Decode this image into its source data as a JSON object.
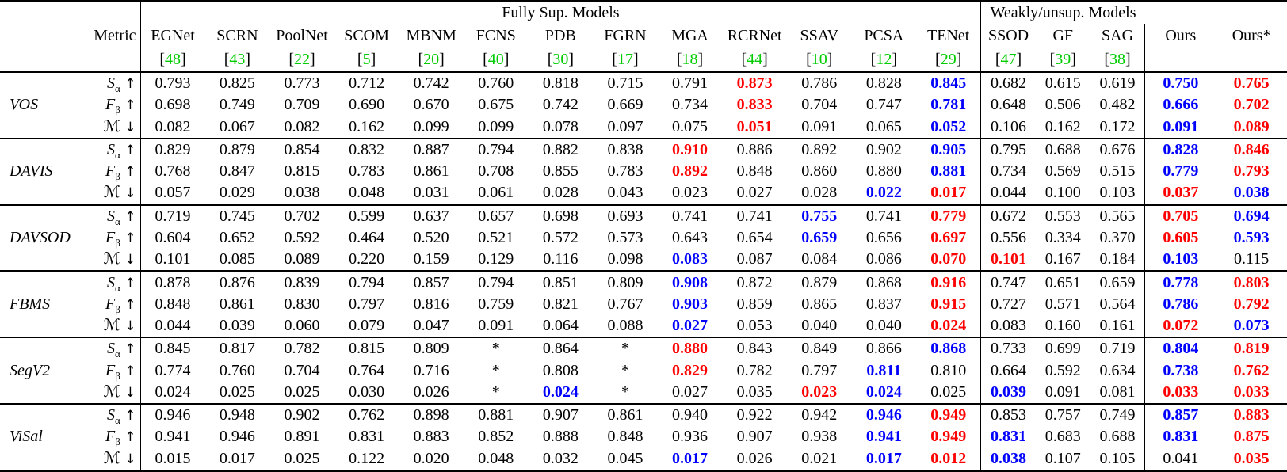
{
  "table": {
    "group_headers": [
      {
        "label": "Fully Sup. Models",
        "span": 13
      },
      {
        "label": "Weakly/unsup. Models",
        "span": 3
      }
    ],
    "metric_header": "Metric",
    "brackets": [
      "[",
      "]"
    ],
    "colors": {
      "best": "#ff0000",
      "second": "#0000ff",
      "cite": "#00cc00"
    },
    "legend": {
      "k": "black",
      "r": "best-red-bold",
      "b": "second-blue-bold"
    },
    "models": [
      {
        "name": "EGNet",
        "cite": "48"
      },
      {
        "name": "SCRN",
        "cite": "43"
      },
      {
        "name": "PoolNet",
        "cite": "22"
      },
      {
        "name": "SCOM",
        "cite": "5"
      },
      {
        "name": "MBNM",
        "cite": "20"
      },
      {
        "name": "FCNS",
        "cite": "40"
      },
      {
        "name": "PDB",
        "cite": "30"
      },
      {
        "name": "FGRN",
        "cite": "17"
      },
      {
        "name": "MGA",
        "cite": "18"
      },
      {
        "name": "RCRNet",
        "cite": "44"
      },
      {
        "name": "SSAV",
        "cite": "10"
      },
      {
        "name": "PCSA",
        "cite": "12"
      },
      {
        "name": "TENet",
        "cite": "29"
      },
      {
        "name": "SSOD",
        "cite": "47"
      },
      {
        "name": "GF",
        "cite": "39"
      },
      {
        "name": "SAG",
        "cite": "38"
      },
      {
        "name": "Ours",
        "cite": ""
      },
      {
        "name": "Ours*",
        "cite": ""
      }
    ],
    "metrics": [
      {
        "sym": "S",
        "sub": "α",
        "dir": "↑",
        "key": "s-alpha"
      },
      {
        "sym": "F",
        "sub": "β",
        "dir": "↑",
        "key": "f-beta"
      },
      {
        "sym": "ℳ",
        "sub": "",
        "dir": "↓",
        "key": "mae"
      }
    ],
    "datasets": [
      {
        "name": "VOS",
        "rows": [
          [
            "0.793:k",
            "0.825:k",
            "0.773:k",
            "0.712:k",
            "0.742:k",
            "0.760:k",
            "0.818:k",
            "0.715:k",
            "0.791:k",
            "0.873:r",
            "0.786:k",
            "0.828:k",
            "0.845:b",
            "0.682:k",
            "0.615:k",
            "0.619:k",
            "0.750:b",
            "0.765:r"
          ],
          [
            "0.698:k",
            "0.749:k",
            "0.709:k",
            "0.690:k",
            "0.670:k",
            "0.675:k",
            "0.742:k",
            "0.669:k",
            "0.734:k",
            "0.833:r",
            "0.704:k",
            "0.747:k",
            "0.781:b",
            "0.648:k",
            "0.506:k",
            "0.482:k",
            "0.666:b",
            "0.702:r"
          ],
          [
            "0.082:k",
            "0.067:k",
            "0.082:k",
            "0.162:k",
            "0.099:k",
            "0.099:k",
            "0.078:k",
            "0.097:k",
            "0.075:k",
            "0.051:r",
            "0.091:k",
            "0.065:k",
            "0.052:b",
            "0.106:k",
            "0.162:k",
            "0.172:k",
            "0.091:b",
            "0.089:r"
          ]
        ]
      },
      {
        "name": "DAVIS",
        "rows": [
          [
            "0.829:k",
            "0.879:k",
            "0.854:k",
            "0.832:k",
            "0.887:k",
            "0.794:k",
            "0.882:k",
            "0.838:k",
            "0.910:r",
            "0.886:k",
            "0.892:k",
            "0.902:k",
            "0.905:b",
            "0.795:k",
            "0.688:k",
            "0.676:k",
            "0.828:b",
            "0.846:r"
          ],
          [
            "0.768:k",
            "0.847:k",
            "0.815:k",
            "0.783:k",
            "0.861:k",
            "0.708:k",
            "0.855:k",
            "0.783:k",
            "0.892:r",
            "0.848:k",
            "0.860:k",
            "0.880:k",
            "0.881:b",
            "0.734:k",
            "0.569:k",
            "0.515:k",
            "0.779:b",
            "0.793:r"
          ],
          [
            "0.057:k",
            "0.029:k",
            "0.038:k",
            "0.048:k",
            "0.031:k",
            "0.061:k",
            "0.028:k",
            "0.043:k",
            "0.023:k",
            "0.027:k",
            "0.028:k",
            "0.022:b",
            "0.017:r",
            "0.044:k",
            "0.100:k",
            "0.103:k",
            "0.037:r",
            "0.038:b"
          ]
        ]
      },
      {
        "name": "DAVSOD",
        "rows": [
          [
            "0.719:k",
            "0.745:k",
            "0.702:k",
            "0.599:k",
            "0.637:k",
            "0.657:k",
            "0.698:k",
            "0.693:k",
            "0.741:k",
            "0.741:k",
            "0.755:b",
            "0.741:k",
            "0.779:r",
            "0.672:k",
            "0.553:k",
            "0.565:k",
            "0.705:r",
            "0.694:b"
          ],
          [
            "0.604:k",
            "0.652:k",
            "0.592:k",
            "0.464:k",
            "0.520:k",
            "0.521:k",
            "0.572:k",
            "0.573:k",
            "0.643:k",
            "0.654:k",
            "0.659:b",
            "0.656:k",
            "0.697:r",
            "0.556:k",
            "0.334:k",
            "0.370:k",
            "0.605:r",
            "0.593:b"
          ],
          [
            "0.101:k",
            "0.085:k",
            "0.089:k",
            "0.220:k",
            "0.159:k",
            "0.129:k",
            "0.116:k",
            "0.098:k",
            "0.083:b",
            "0.087:k",
            "0.084:k",
            "0.086:k",
            "0.070:r",
            "0.101:r",
            "0.167:k",
            "0.184:k",
            "0.103:b",
            "0.115:k"
          ]
        ]
      },
      {
        "name": "FBMS",
        "rows": [
          [
            "0.878:k",
            "0.876:k",
            "0.839:k",
            "0.794:k",
            "0.857:k",
            "0.794:k",
            "0.851:k",
            "0.809:k",
            "0.908:b",
            "0.872:k",
            "0.879:k",
            "0.868:k",
            "0.916:r",
            "0.747:k",
            "0.651:k",
            "0.659:k",
            "0.778:b",
            "0.803:r"
          ],
          [
            "0.848:k",
            "0.861:k",
            "0.830:k",
            "0.797:k",
            "0.816:k",
            "0.759:k",
            "0.821:k",
            "0.767:k",
            "0.903:b",
            "0.859:k",
            "0.865:k",
            "0.837:k",
            "0.915:r",
            "0.727:k",
            "0.571:k",
            "0.564:k",
            "0.786:b",
            "0.792:r"
          ],
          [
            "0.044:k",
            "0.039:k",
            "0.060:k",
            "0.079:k",
            "0.047:k",
            "0.091:k",
            "0.064:k",
            "0.088:k",
            "0.027:b",
            "0.053:k",
            "0.040:k",
            "0.040:k",
            "0.024:r",
            "0.083:k",
            "0.160:k",
            "0.161:k",
            "0.072:r",
            "0.073:b"
          ]
        ]
      },
      {
        "name": "SegV2",
        "rows": [
          [
            "0.845:k",
            "0.817:k",
            "0.782:k",
            "0.815:k",
            "0.809:k",
            "*:k",
            "0.864:k",
            "*:k",
            "0.880:r",
            "0.843:k",
            "0.849:k",
            "0.866:k",
            "0.868:b",
            "0.733:k",
            "0.699:k",
            "0.719:k",
            "0.804:b",
            "0.819:r"
          ],
          [
            "0.774:k",
            "0.760:k",
            "0.704:k",
            "0.764:k",
            "0.716:k",
            "*:k",
            "0.808:k",
            "*:k",
            "0.829:r",
            "0.782:k",
            "0.797:k",
            "0.811:b",
            "0.810:k",
            "0.664:k",
            "0.592:k",
            "0.634:k",
            "0.738:b",
            "0.762:r"
          ],
          [
            "0.024:k",
            "0.025:k",
            "0.025:k",
            "0.030:k",
            "0.026:k",
            "*:k",
            "0.024:b",
            "*:k",
            "0.027:k",
            "0.035:k",
            "0.023:r",
            "0.024:b",
            "0.025:k",
            "0.039:b",
            "0.091:k",
            "0.081:k",
            "0.033:r",
            "0.033:r"
          ]
        ]
      },
      {
        "name": "ViSal",
        "rows": [
          [
            "0.946:k",
            "0.948:k",
            "0.902:k",
            "0.762:k",
            "0.898:k",
            "0.881:k",
            "0.907:k",
            "0.861:k",
            "0.940:k",
            "0.922:k",
            "0.942:k",
            "0.946:b",
            "0.949:r",
            "0.853:k",
            "0.757:k",
            "0.749:k",
            "0.857:b",
            "0.883:r"
          ],
          [
            "0.941:k",
            "0.946:k",
            "0.891:k",
            "0.831:k",
            "0.883:k",
            "0.852:k",
            "0.888:k",
            "0.848:k",
            "0.936:k",
            "0.907:k",
            "0.938:k",
            "0.941:b",
            "0.949:r",
            "0.831:b",
            "0.683:k",
            "0.688:k",
            "0.831:b",
            "0.875:r"
          ],
          [
            "0.015:k",
            "0.017:k",
            "0.025:k",
            "0.122:k",
            "0.020:k",
            "0.048:k",
            "0.032:k",
            "0.045:k",
            "0.017:b",
            "0.026:k",
            "0.021:k",
            "0.017:b",
            "0.012:r",
            "0.038:b",
            "0.107:k",
            "0.105:k",
            "0.041:k",
            "0.035:r"
          ]
        ]
      }
    ]
  }
}
